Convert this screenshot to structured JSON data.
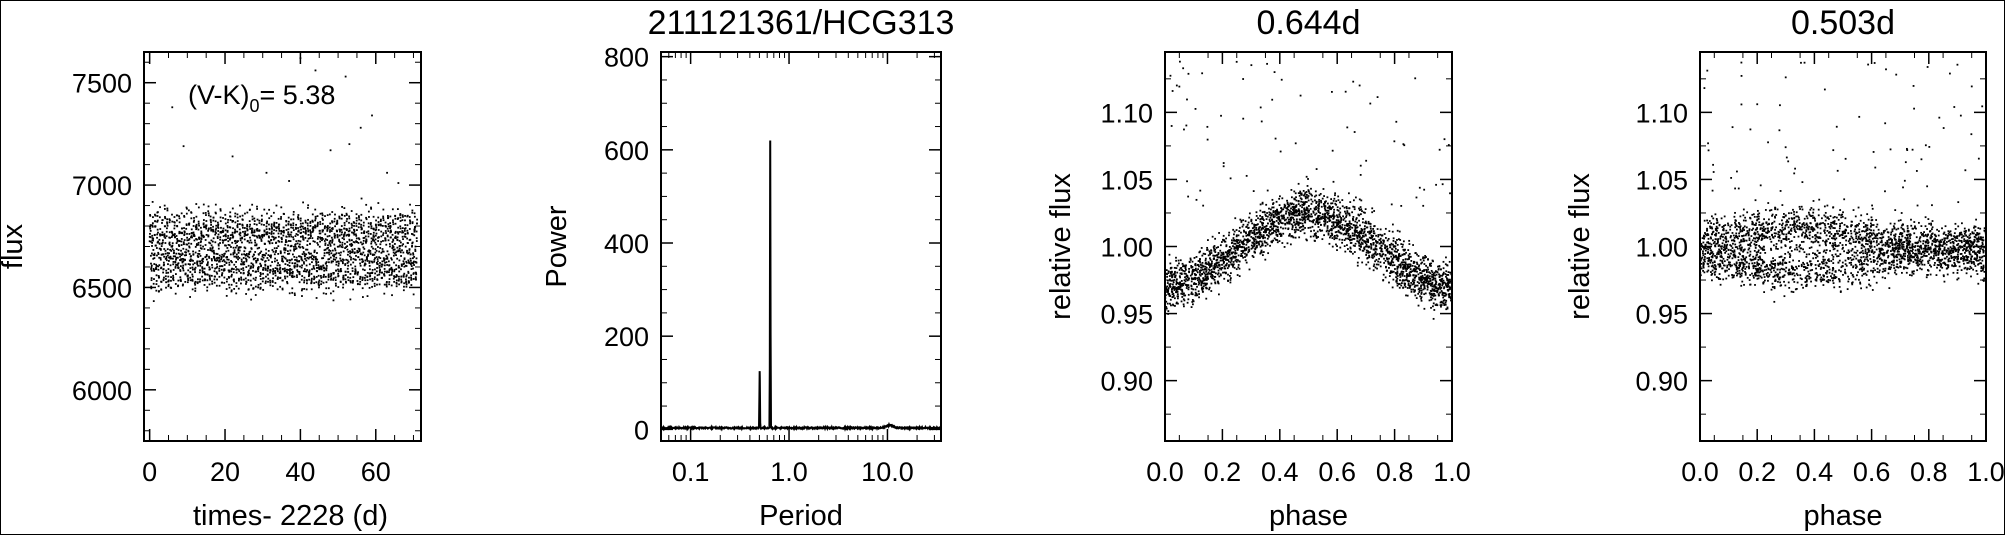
{
  "chart_data": [
    {
      "id": "lightcurve",
      "type": "scatter",
      "title": "",
      "xlabel": "times- 2228 (d)",
      "ylabel": "flux",
      "xlim": [
        -1.5,
        72
      ],
      "ylim": [
        5750,
        7650
      ],
      "xticks": [
        0,
        20,
        40,
        60
      ],
      "yticks": [
        6000,
        6500,
        7000,
        7500
      ],
      "annotation": {
        "prefix": "(V-K)",
        "subscript": "0",
        "suffix": "= 5.38"
      },
      "series": [
        {
          "trend": {
            "center": 6680,
            "amplitude": 170
          },
          "x_range": [
            0,
            71
          ],
          "n_points": 2600,
          "outliers": [
            [
              6,
              7380
            ],
            [
              9,
              7190
            ],
            [
              22,
              7140
            ],
            [
              31,
              7060
            ],
            [
              37,
              7020
            ],
            [
              40,
              7620
            ],
            [
              44,
              7560
            ],
            [
              47,
              7450
            ],
            [
              48,
              7170
            ],
            [
              52,
              7530
            ],
            [
              53,
              7200
            ],
            [
              56,
              7280
            ],
            [
              59,
              7340
            ],
            [
              63,
              7060
            ],
            [
              66,
              7010
            ]
          ]
        }
      ],
      "grid": false
    },
    {
      "id": "periodogram",
      "type": "line",
      "title": "211121361/HCG313",
      "xlabel": "Period",
      "ylabel": "Power",
      "xscale": "log",
      "xlim": [
        0.05,
        35
      ],
      "ylim": [
        -25,
        810
      ],
      "xticks": [
        0.1,
        1.0,
        10.0
      ],
      "xticklabels": [
        "0.1",
        "1.0",
        "10.0"
      ],
      "yticks": [
        0,
        200,
        400,
        600,
        800
      ],
      "peaks": [
        [
          0.503,
          125
        ],
        [
          0.644,
          620
        ]
      ],
      "noise_floor": 3,
      "grid": false
    },
    {
      "id": "phase1",
      "type": "scatter",
      "title": "0.644d",
      "xlabel": "phase",
      "ylabel": "relative flux",
      "xlim": [
        0,
        1
      ],
      "ylim": [
        0.855,
        1.145
      ],
      "xticks": [
        0,
        0.2,
        0.4,
        0.6,
        0.8,
        1.0
      ],
      "xticklabels": [
        "0.0",
        "0.2",
        "0.4",
        "0.6",
        "0.8",
        "1.0"
      ],
      "yticks": [
        0.9,
        0.95,
        1.0,
        1.05,
        1.1
      ],
      "yticklabels": [
        "0.90",
        "0.95",
        "1.00",
        "1.05",
        "1.10"
      ],
      "series": [
        {
          "trend": {
            "mean": 0.998,
            "amplitude": 0.027,
            "peak_phase": 0.5
          },
          "n_points": 2600
        }
      ],
      "grid": false
    },
    {
      "id": "phase2",
      "type": "scatter",
      "title": "0.503d",
      "xlabel": "phase",
      "ylabel": "relative flux",
      "xlim": [
        0,
        1
      ],
      "ylim": [
        0.855,
        1.145
      ],
      "xticks": [
        0,
        0.2,
        0.4,
        0.6,
        0.8,
        1.0
      ],
      "xticklabels": [
        "0.0",
        "0.2",
        "0.4",
        "0.6",
        "0.8",
        "1.0"
      ],
      "yticks": [
        0.9,
        0.95,
        1.0,
        1.05,
        1.1
      ],
      "yticklabels": [
        "0.90",
        "0.95",
        "1.00",
        "1.05",
        "1.10"
      ],
      "series": [
        {
          "trend": {
            "mean": 0.998,
            "amplitude": 0.016,
            "peak_phase": 0.35
          },
          "n_points": 2600
        }
      ],
      "grid": false
    }
  ]
}
